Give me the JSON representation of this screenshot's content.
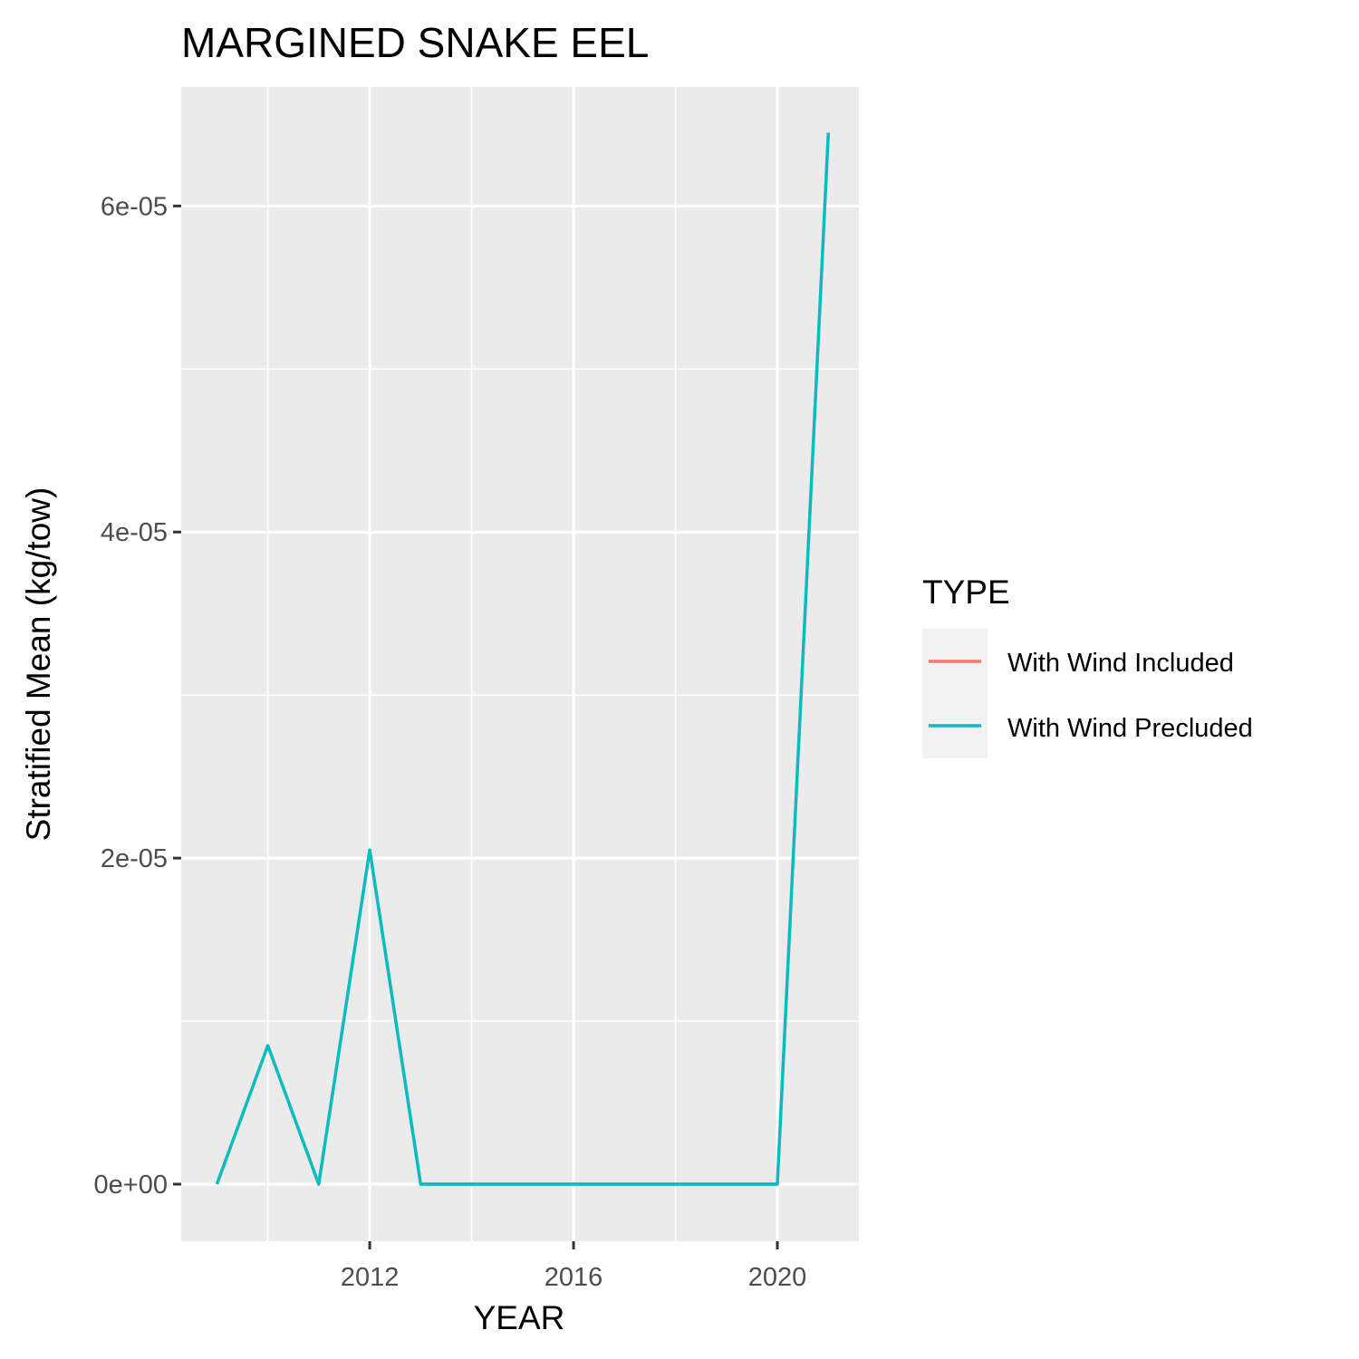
{
  "chart_data": {
    "type": "line",
    "title": "MARGINED SNAKE EEL",
    "xlabel": "YEAR",
    "ylabel": "Stratified Mean (kg/tow)",
    "xlim": [
      2008.3,
      2021.6
    ],
    "ylim": [
      -3.5e-06,
      6.73e-05
    ],
    "x_ticks": [
      2012,
      2016,
      2020
    ],
    "x_tick_labels": [
      "2012",
      "2016",
      "2020"
    ],
    "y_ticks": [
      0,
      2e-05,
      4e-05,
      6e-05
    ],
    "y_tick_labels": [
      "0e+00",
      "2e-05",
      "4e-05",
      "6e-05"
    ],
    "grid": true,
    "legend": {
      "title": "TYPE",
      "position": "right",
      "entries": [
        {
          "label": "With Wind Included",
          "color": "#F8766D"
        },
        {
          "label": "With Wind Precluded",
          "color": "#00BFC4"
        }
      ]
    },
    "series": [
      {
        "name": "With Wind Included",
        "color": "#F8766D",
        "x": [
          2009,
          2010,
          2011,
          2012,
          2013,
          2014,
          2015,
          2016,
          2017,
          2018,
          2019,
          2020,
          2021
        ],
        "y": [
          0,
          8.5e-06,
          0,
          2.05e-05,
          0,
          0,
          0,
          0,
          0,
          0,
          0,
          0,
          6.45e-05
        ]
      },
      {
        "name": "With Wind Precluded",
        "color": "#00BFC4",
        "x": [
          2009,
          2010,
          2011,
          2012,
          2013,
          2014,
          2015,
          2016,
          2017,
          2018,
          2019,
          2020,
          2021
        ],
        "y": [
          0,
          8.5e-06,
          0,
          2.05e-05,
          0,
          0,
          0,
          0,
          0,
          0,
          0,
          0,
          6.45e-05
        ]
      }
    ]
  }
}
